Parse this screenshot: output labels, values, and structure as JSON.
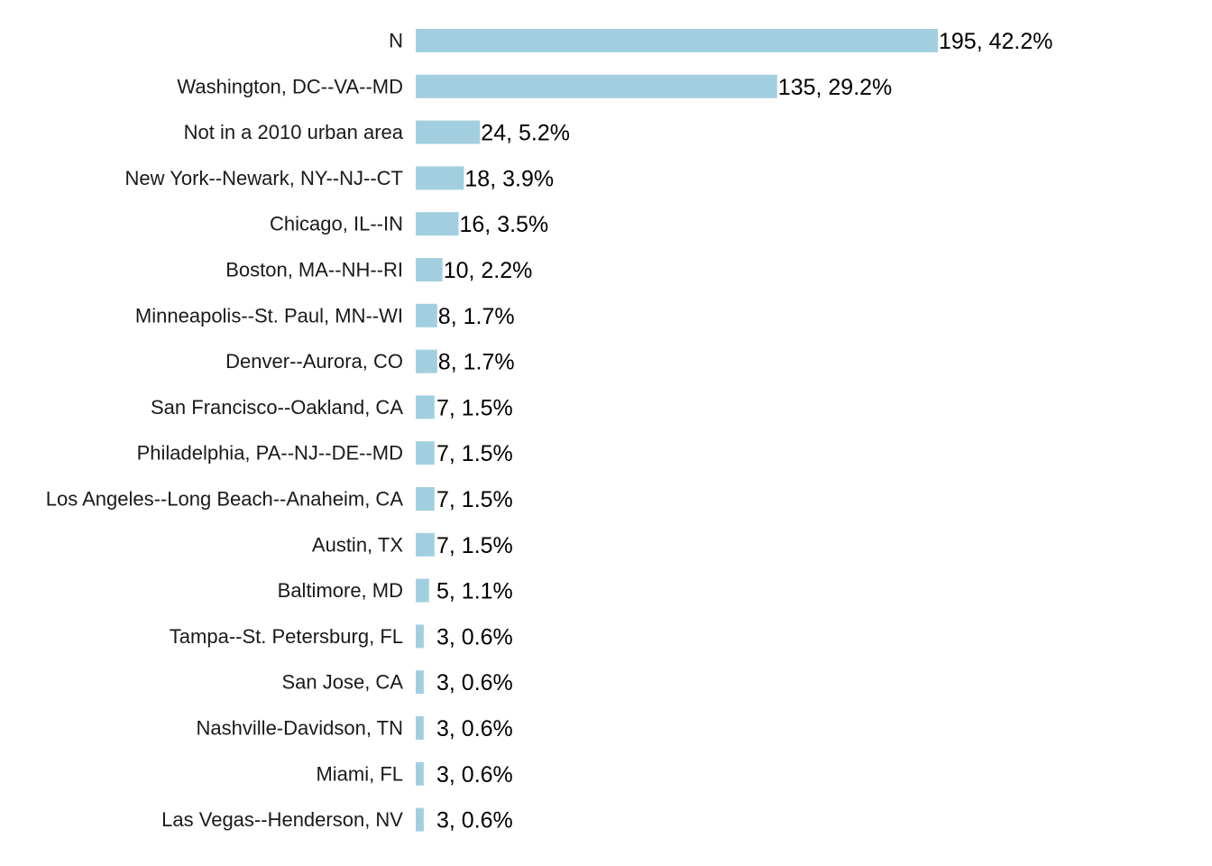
{
  "chart_data": {
    "type": "bar",
    "orientation": "horizontal",
    "title": "",
    "xlabel": "",
    "ylabel": "",
    "grid": false,
    "legend": "none",
    "bar_color": "#a2cfe0",
    "categories": [
      "N",
      "Washington, DC--VA--MD",
      "Not in a 2010 urban area",
      "New York--Newark, NY--NJ--CT",
      "Chicago, IL--IN",
      "Boston, MA--NH--RI",
      "Minneapolis--St. Paul, MN--WI",
      "Denver--Aurora, CO",
      "San Francisco--Oakland, CA",
      "Philadelphia, PA--NJ--DE--MD",
      "Los Angeles--Long Beach--Anaheim, CA",
      "Austin, TX",
      "Baltimore, MD",
      "Tampa--St. Petersburg, FL",
      "San Jose, CA",
      "Nashville-Davidson, TN",
      "Miami, FL",
      "Las Vegas--Henderson, NV"
    ],
    "values": [
      195,
      135,
      24,
      18,
      16,
      10,
      8,
      8,
      7,
      7,
      7,
      7,
      5,
      3,
      3,
      3,
      3,
      3
    ],
    "data_labels": [
      "195, 42.2%",
      "135, 29.2%",
      "24, 5.2%",
      "18, 3.9%",
      "16, 3.5%",
      "10, 2.2%",
      "8, 1.7%",
      "8, 1.7%",
      "7, 1.5%",
      "7, 1.5%",
      "7, 1.5%",
      "7, 1.5%",
      "5, 1.1%",
      "3, 0.6%",
      "3, 0.6%",
      "3, 0.6%",
      "3, 0.6%",
      "3, 0.6%"
    ],
    "xlim": [
      0,
      195
    ]
  }
}
